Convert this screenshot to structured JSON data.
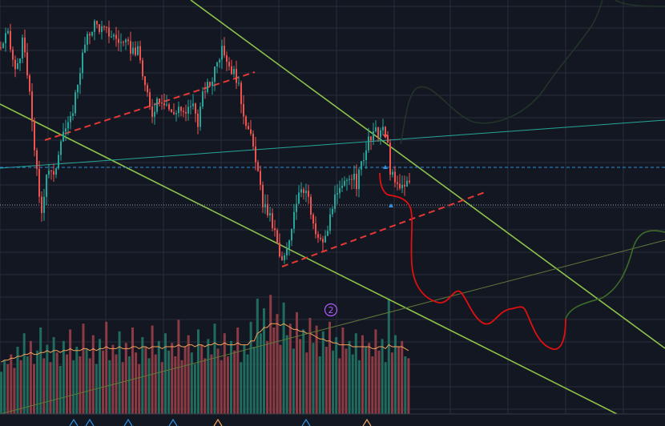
{
  "chart_data": {
    "type": "candlestick",
    "title": "",
    "xlabel": "",
    "ylabel": "",
    "grid": true,
    "colors": {
      "background": "#131722",
      "grid": "#2a2e39",
      "bull": "#26a69a",
      "bear": "#ef5350",
      "trendline": "#8bc34a",
      "support_dashed": "#e53935",
      "projection": "#e01010",
      "teal_line": "#26a69a",
      "blue_dashed": "#2f8fe0",
      "dotted_level": "#9aa4b6",
      "volume_ma": "#f5a35a",
      "badge": "#b35cff"
    },
    "price_path": [
      [
        0,
        92
      ],
      [
        8,
        98
      ],
      [
        18,
        82
      ],
      [
        28,
        95
      ],
      [
        38,
        66
      ],
      [
        50,
        22
      ],
      [
        58,
        44
      ],
      [
        66,
        38
      ],
      [
        76,
        58
      ],
      [
        86,
        60
      ],
      [
        96,
        78
      ],
      [
        104,
        92
      ],
      [
        116,
        102
      ],
      [
        128,
        99
      ],
      [
        140,
        97
      ],
      [
        150,
        94
      ],
      [
        160,
        92
      ],
      [
        172,
        90
      ],
      [
        180,
        76
      ],
      [
        188,
        64
      ],
      [
        196,
        72
      ],
      [
        206,
        70
      ],
      [
        214,
        64
      ],
      [
        222,
        68
      ],
      [
        230,
        63
      ],
      [
        238,
        70
      ],
      [
        246,
        62
      ],
      [
        254,
        75
      ],
      [
        262,
        77
      ],
      [
        270,
        88
      ],
      [
        278,
        91
      ],
      [
        286,
        84
      ],
      [
        294,
        80
      ],
      [
        302,
        67
      ],
      [
        310,
        57
      ],
      [
        318,
        47
      ],
      [
        326,
        29
      ],
      [
        334,
        24
      ],
      [
        342,
        16
      ],
      [
        350,
        3
      ],
      [
        358,
        9
      ],
      [
        366,
        26
      ],
      [
        374,
        36
      ],
      [
        382,
        33
      ],
      [
        390,
        18
      ],
      [
        398,
        12
      ],
      [
        406,
        14
      ],
      [
        414,
        28
      ],
      [
        420,
        31
      ],
      [
        428,
        35
      ],
      [
        436,
        41
      ],
      [
        444,
        36
      ],
      [
        452,
        47
      ],
      [
        460,
        54
      ],
      [
        468,
        57
      ],
      [
        476,
        58
      ],
      [
        482,
        55
      ],
      [
        486,
        42
      ],
      [
        492,
        36
      ],
      [
        498,
        34
      ],
      [
        504,
        37
      ],
      [
        510,
        36
      ]
    ],
    "volume": {
      "values": [
        22,
        28,
        26,
        31,
        24,
        35,
        28,
        42,
        30,
        38,
        26,
        33,
        45,
        29,
        36,
        27,
        40,
        32,
        25,
        38,
        31,
        44,
        28,
        35,
        30,
        47,
        34,
        29,
        41,
        26,
        39,
        33,
        48,
        28,
        36,
        31,
        43,
        27,
        37,
        30,
        45,
        32,
        26,
        40,
        35,
        29,
        46,
        31,
        38,
        27,
        42,
        33,
        37,
        30,
        49,
        28,
        35,
        41,
        32,
        26,
        44,
        36,
        29,
        39,
        31,
        47,
        34,
        28,
        42,
        30,
        38,
        33,
        45,
        27,
        36,
        31,
        48,
        35,
        60,
        42,
        55,
        38,
        62,
        45,
        52,
        36,
        58,
        41,
        47,
        34,
        53,
        39,
        44,
        32,
        50,
        37,
        46,
        30,
        43,
        35,
        48,
        33,
        40,
        29,
        45,
        34,
        38,
        31,
        42,
        28,
        41,
        35,
        37,
        30,
        44,
        33,
        39,
        27,
        60,
        32,
        41,
        35,
        38,
        30,
        29
      ],
      "ma": [
        27,
        28,
        28,
        29,
        29,
        30,
        30,
        31,
        31,
        32,
        31,
        31,
        32,
        32,
        33,
        32,
        33,
        33,
        32,
        33,
        33,
        34,
        33,
        33,
        33,
        34,
        34,
        33,
        34,
        33,
        34,
        34,
        35,
        34,
        34,
        34,
        35,
        34,
        34,
        34,
        35,
        35,
        34,
        35,
        35,
        34,
        35,
        35,
        35,
        34,
        35,
        35,
        35,
        35,
        36,
        35,
        35,
        36,
        36,
        35,
        36,
        36,
        35,
        36,
        36,
        37,
        36,
        36,
        37,
        36,
        36,
        36,
        37,
        36,
        36,
        36,
        38,
        38,
        42,
        43,
        45,
        45,
        47,
        47,
        47,
        46,
        47,
        46,
        45,
        44,
        44,
        43,
        43,
        42,
        42,
        41,
        40,
        39,
        39,
        38,
        38,
        37,
        37,
        36,
        36,
        36,
        36,
        35,
        35,
        35,
        35,
        35,
        35,
        34,
        34,
        35,
        35,
        34,
        36,
        35,
        35,
        35,
        35,
        34,
        33
      ]
    },
    "annotations": {
      "marker_label": "2"
    }
  }
}
